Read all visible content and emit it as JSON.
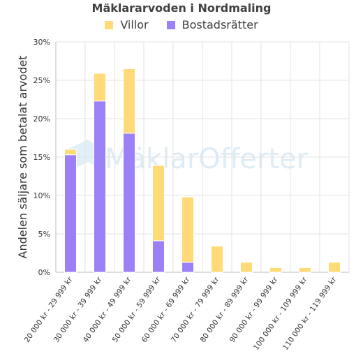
{
  "chart_data": {
    "type": "bar",
    "stacked": true,
    "title": "Mäklararvoden i Nordmaling",
    "ylabel": "Andelen säljare som betalat arvodet",
    "xlabel": "",
    "watermark": "MäklarOfferter",
    "ylim": [
      0,
      30
    ],
    "yticks": [
      "0%",
      "5%",
      "10%",
      "15%",
      "20%",
      "25%",
      "30%"
    ],
    "categories": [
      "20 000 kr - 29 999 kr",
      "30 000 kr - 39 999 kr",
      "40 000 kr - 49 999 kr",
      "50 000 kr - 59 999 kr",
      "60 000 kr - 69 999 kr",
      "70 000 kr - 79 999 kr",
      "80 000 kr - 89 999 kr",
      "90 000 kr - 99 999 kr",
      "100 000 kr - 109 999 kr",
      "110 000 kr - 119 999 kr"
    ],
    "series": [
      {
        "name": "Bostadsrätter",
        "color": "#9b80f6",
        "values": [
          15.3,
          22.3,
          18.1,
          4.1,
          1.3,
          0,
          0,
          0,
          0,
          0
        ]
      },
      {
        "name": "Villor",
        "color": "#ffda76",
        "values": [
          0.7,
          3.6,
          8.4,
          9.8,
          8.5,
          3.4,
          1.3,
          0.6,
          0.6,
          1.3
        ]
      }
    ],
    "legend_order": [
      "Villor",
      "Bostadsrätter"
    ],
    "legend_position": "top",
    "grid": true
  }
}
